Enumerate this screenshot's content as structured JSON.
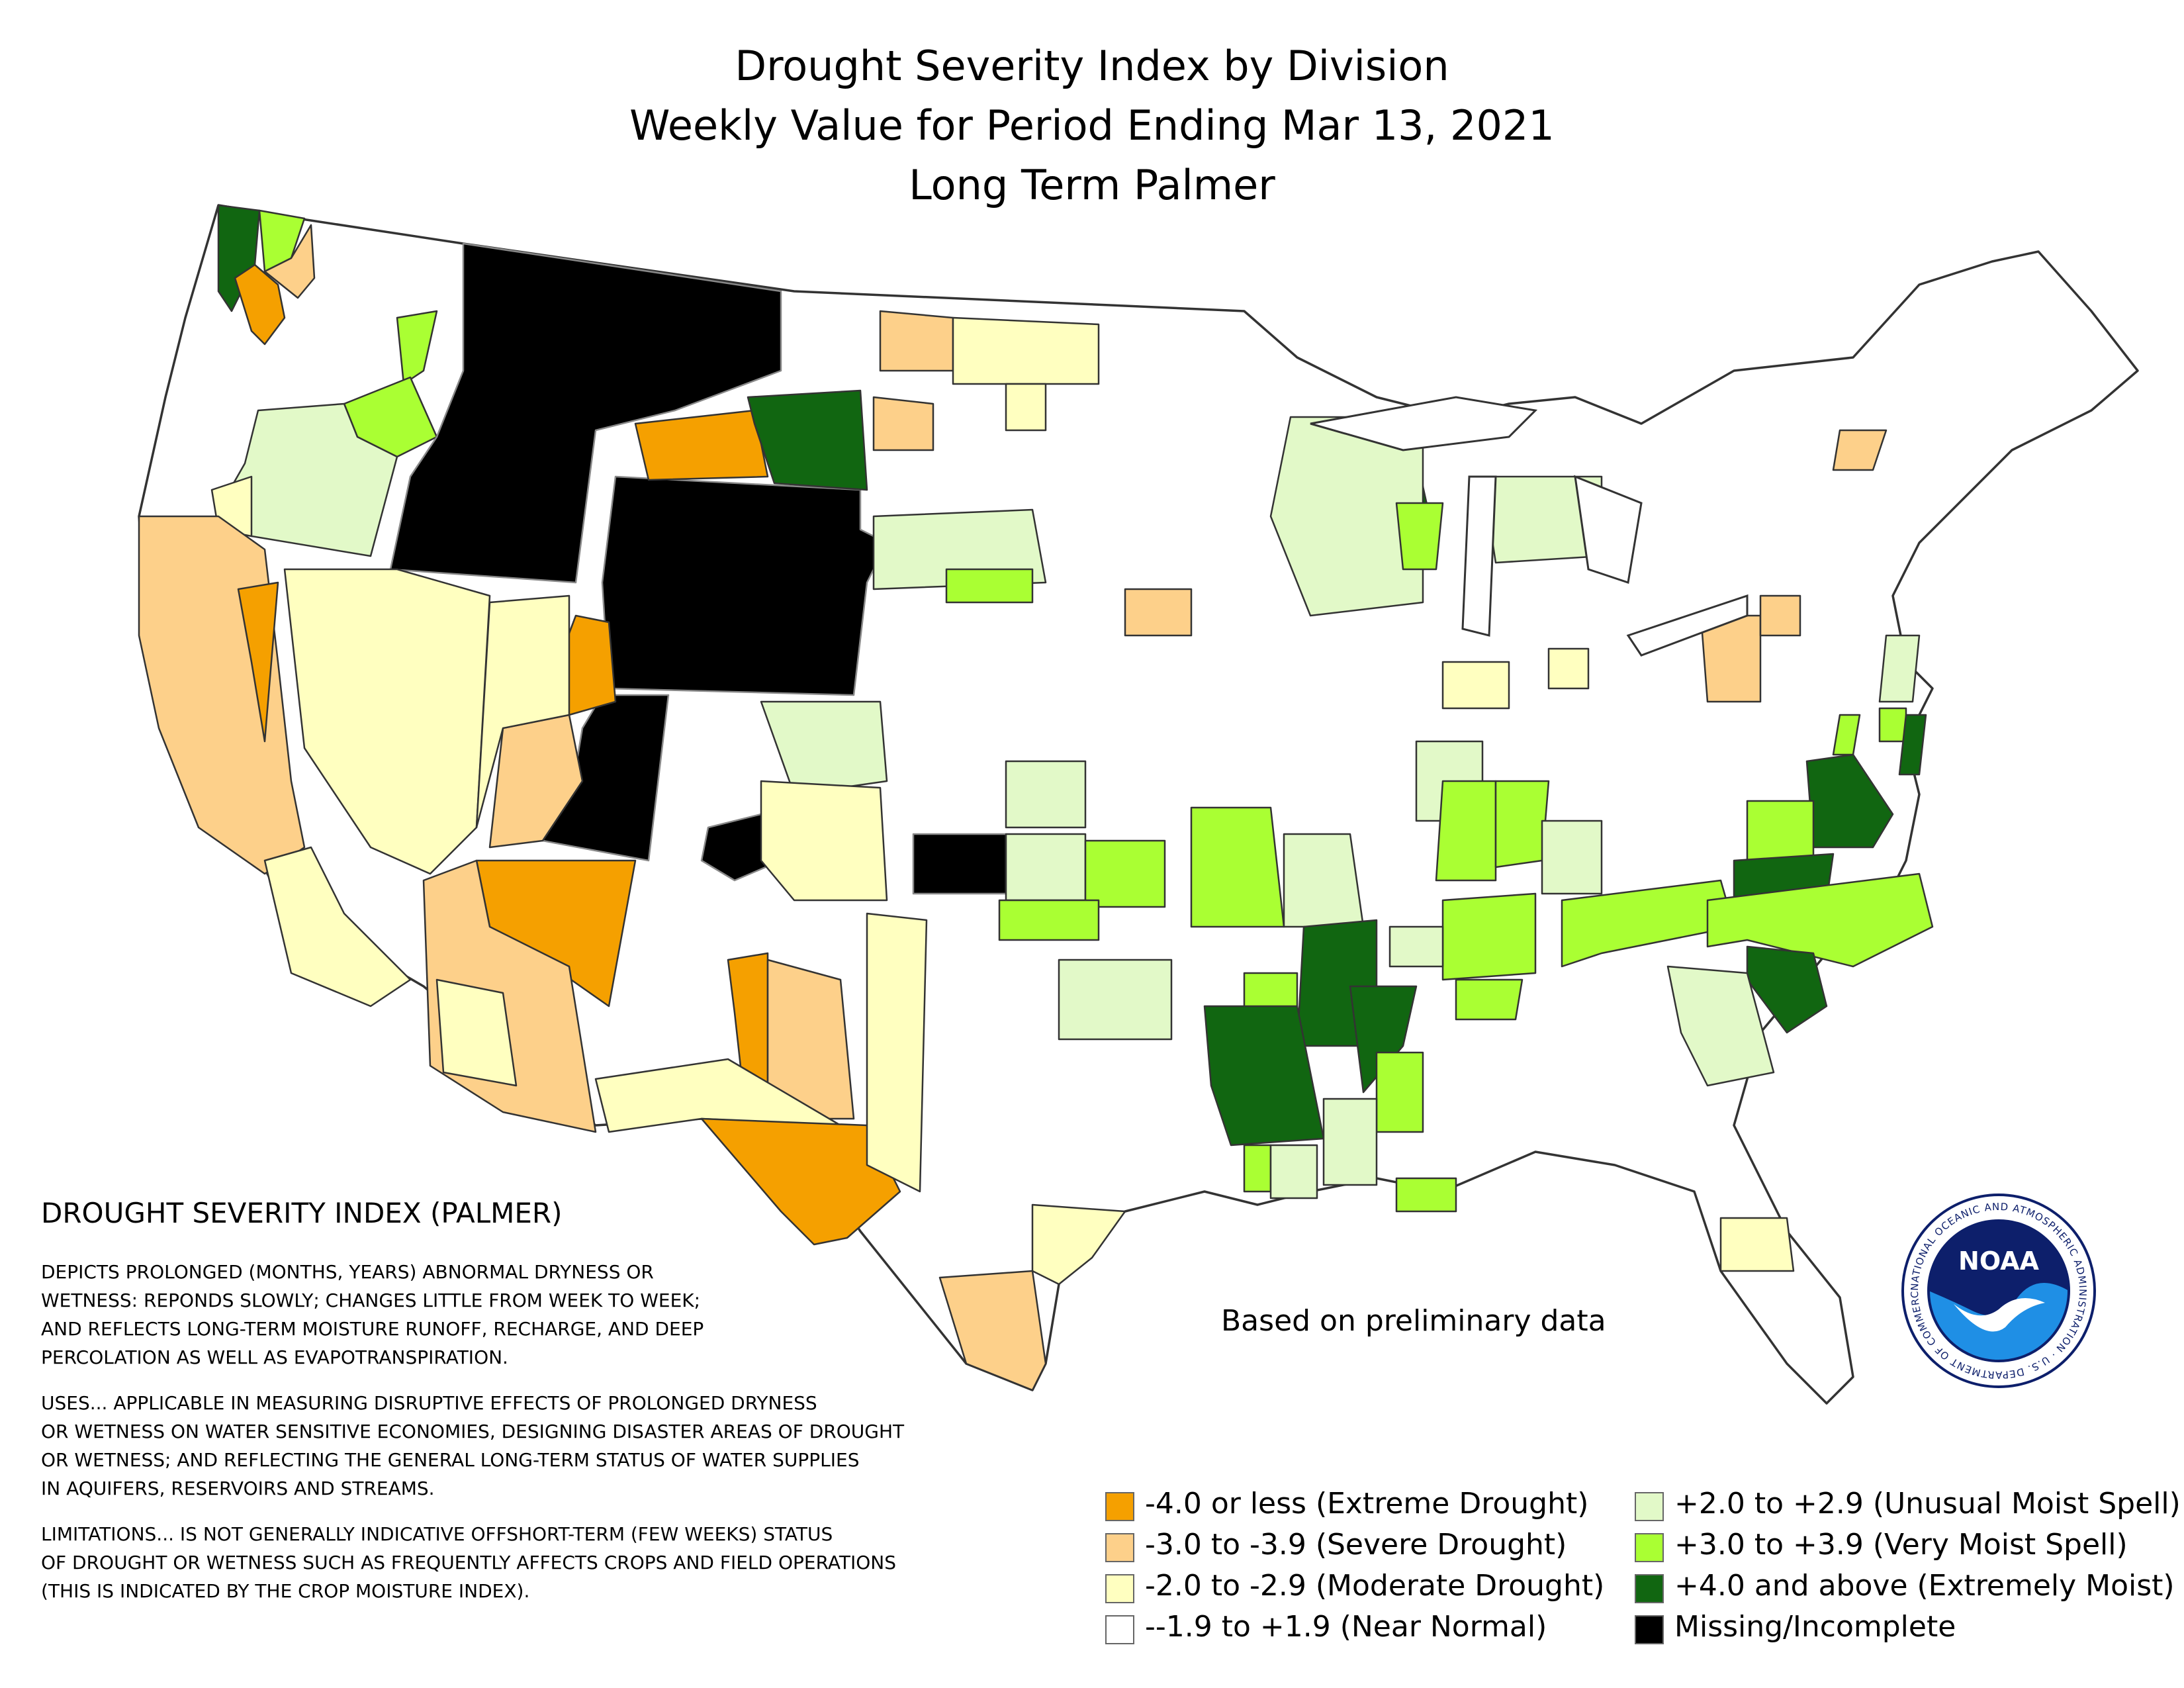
{
  "title": {
    "line1": "Drought Severity Index by Division",
    "line2": "Weekly Value for Period Ending Mar 13, 2021",
    "line3": "Long Term Palmer"
  },
  "note": "Based on preliminary data",
  "description": {
    "heading": "DROUGHT SEVERITY INDEX (PALMER)",
    "depicts": "DEPICTS PROLONGED (MONTHS, YEARS) ABNORMAL DRYNESS OR\nWETNESS: REPONDS SLOWLY; CHANGES LITTLE FROM WEEK TO WEEK;\nAND REFLECTS LONG-TERM MOISTURE RUNOFF, RECHARGE, AND DEEP\nPERCOLATION AS WELL AS EVAPOTRANSPIRATION.",
    "uses": "USES... APPLICABLE IN MEASURING DISRUPTIVE EFFECTS OF PROLONGED DRYNESS\nOR WETNESS ON WATER SENSITIVE ECONOMIES, DESIGNING DISASTER AREAS OF DROUGHT\nOR WETNESS; AND REFLECTING THE GENERAL LONG-TERM STATUS OF WATER SUPPLIES\nIN AQUIFERS, RESERVOIRS AND STREAMS.",
    "limitations": "LIMITATIONS... IS NOT GENERALLY INDICATIVE OFFSHORT-TERM (FEW WEEKS) STATUS\nOF DROUGHT OR WETNESS SUCH AS FREQUENTLY AFFECTS CROPS AND FIELD OPERATIONS\n(THIS IS INDICATED BY THE CROP MOISTURE INDEX)."
  },
  "legend": [
    {
      "label": "-4.0 or less (Extreme Drought)",
      "color": "#f5a000"
    },
    {
      "label": "-3.0 to -3.9 (Severe Drought)",
      "color": "#fdd08a"
    },
    {
      "label": "-2.0 to -2.9 (Moderate Drought)",
      "color": "#ffffc0"
    },
    {
      "label": "--1.9 to +1.9 (Near Normal)",
      "color": "#ffffff"
    },
    {
      "label": "+2.0 to +2.9 (Unusual Moist Spell)",
      "color": "#e2f9c8"
    },
    {
      "label": "+3.0 to +3.9 (Very Moist Spell)",
      "color": "#aaff33"
    },
    {
      "label": "+4.0 and above (Extremely Moist)",
      "color": "#116611"
    },
    {
      "label": "Missing/Incomplete",
      "color": "#000000"
    }
  ],
  "logo": {
    "text": "NOAA",
    "ring_text": "NATIONAL OCEANIC AND ATMOSPHERIC ADMINISTRATION · U.S. DEPARTMENT OF COMMERCE"
  },
  "colors": {
    "extreme_drought": "#f5a000",
    "severe_drought": "#fdd08a",
    "moderate_drought": "#ffffc0",
    "near_normal": "#ffffff",
    "unusual_moist": "#e2f9c8",
    "very_moist": "#aaff33",
    "extremely_moist": "#116611",
    "missing": "#000000",
    "noaa_blue": "#1f5fbf",
    "noaa_navy": "#0d1f6b"
  }
}
